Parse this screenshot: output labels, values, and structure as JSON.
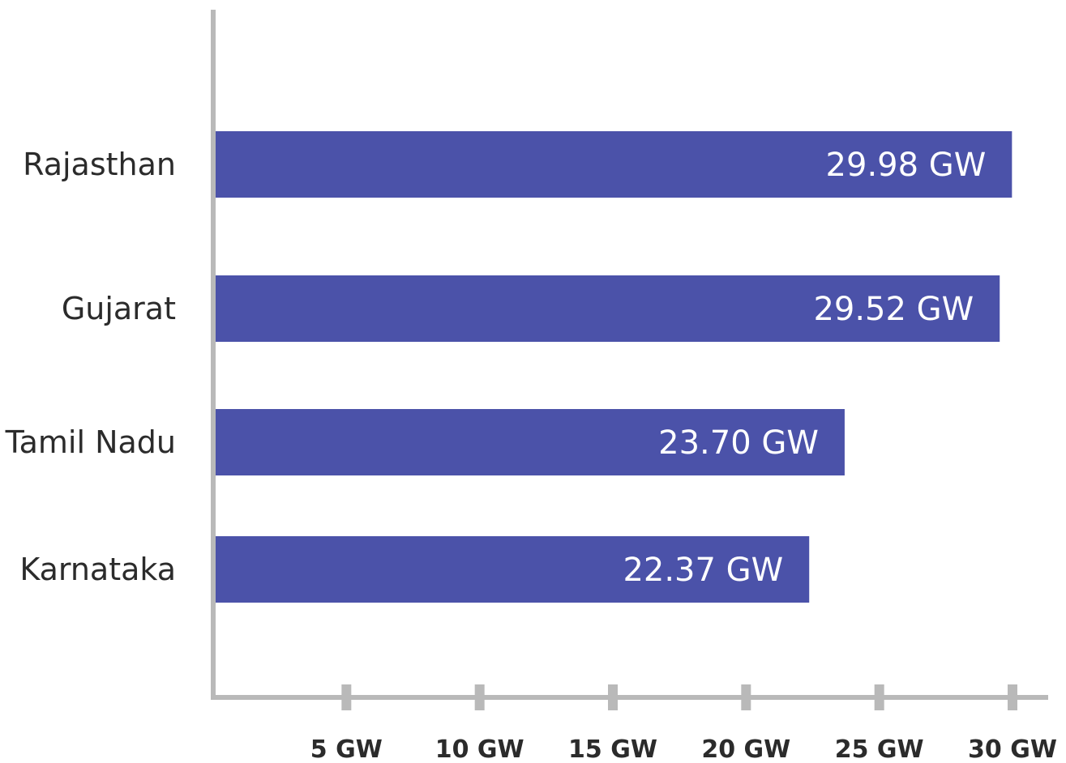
{
  "chart_data": {
    "type": "bar",
    "orientation": "horizontal",
    "categories": [
      "Rajasthan",
      "Gujarat",
      "Tamil Nadu",
      "Karnataka"
    ],
    "values": [
      29.98,
      29.52,
      23.7,
      22.37
    ],
    "value_labels": [
      "29.98 GW",
      "29.52 GW",
      "23.70 GW",
      "22.37 GW"
    ],
    "x_ticks": [
      5,
      10,
      15,
      20,
      25,
      30
    ],
    "x_tick_labels": [
      "5 GW",
      "10 GW",
      "15 GW",
      "20 GW",
      "25 GW",
      "30 GW"
    ],
    "xlim": [
      0,
      30
    ],
    "title": "",
    "xlabel": "",
    "ylabel": "",
    "grid": false,
    "bar_color": "#4b52a9",
    "axis_color": "#b9b9b9"
  }
}
